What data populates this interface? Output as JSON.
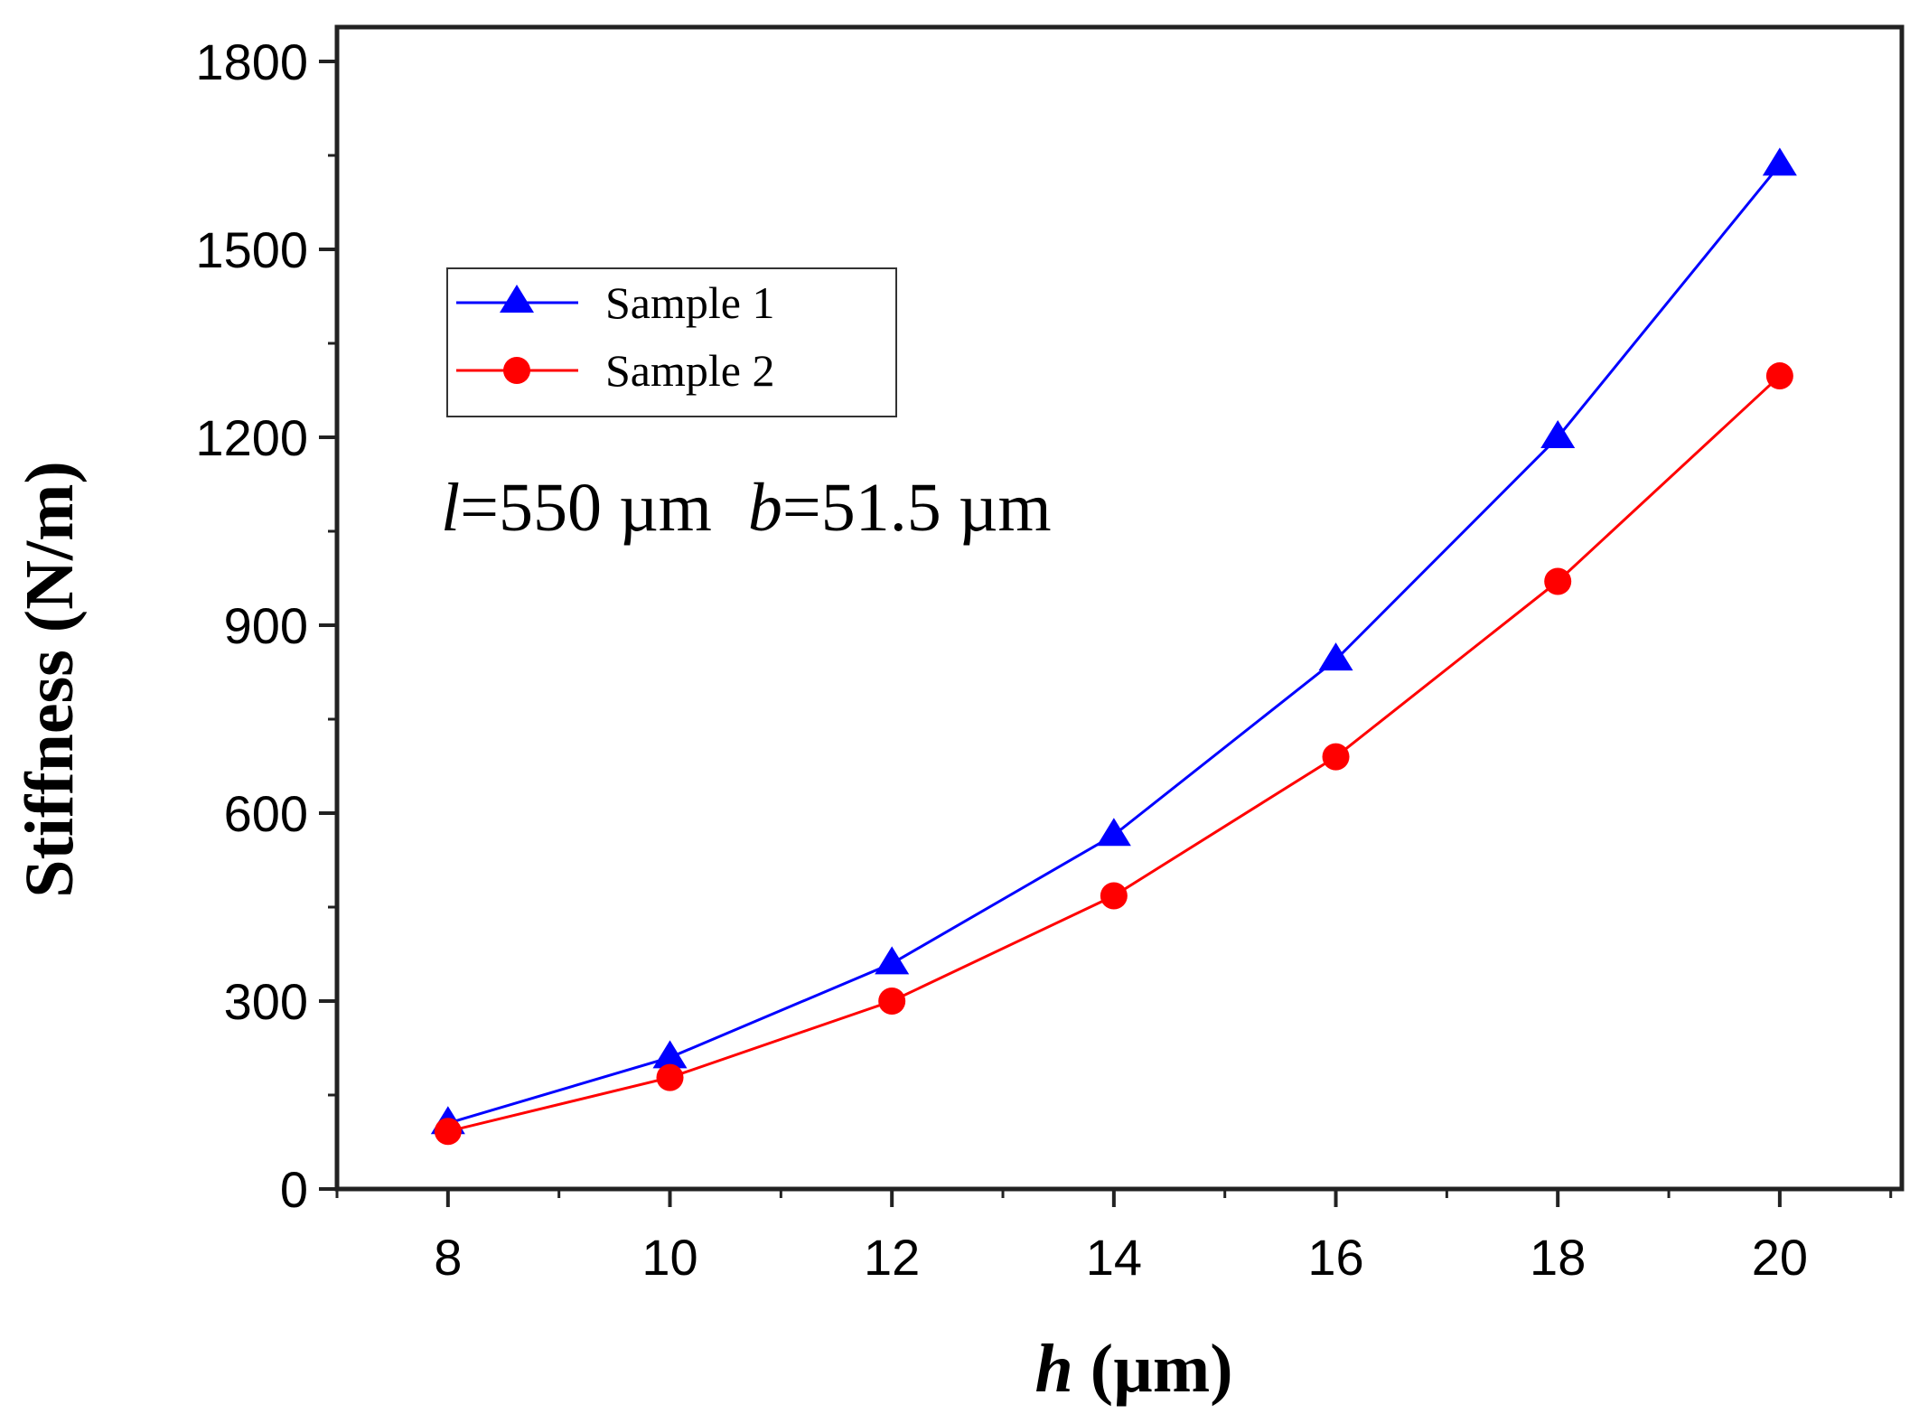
{
  "chart_data": {
    "type": "line",
    "title": "",
    "xlabel_italic": "h",
    "xlabel_rest": " (µm)",
    "ylabel": "Stiffness (N/m)",
    "xlim": [
      7,
      21.1
    ],
    "ylim": [
      0,
      1800
    ],
    "x_ticks": [
      8,
      10,
      12,
      14,
      16,
      18,
      20
    ],
    "y_ticks": [
      0,
      300,
      600,
      900,
      1200,
      1500,
      1800
    ],
    "grid": false,
    "legend_position": "upper-left",
    "x": [
      8,
      10,
      12,
      14,
      16,
      18,
      20
    ],
    "series": [
      {
        "name": "Sample 1",
        "marker": "triangle",
        "color": "#0000ff",
        "values": [
          105,
          210,
          360,
          565,
          845,
          1200,
          1635
        ]
      },
      {
        "name": "Sample 2",
        "marker": "circle",
        "color": "#ff0000",
        "values": [
          92,
          178,
          300,
          468,
          690,
          970,
          1298
        ]
      }
    ],
    "annotation": {
      "l_symbol": "l",
      "l_value": "=550 µm",
      "b_symbol": "b",
      "b_value": "=51.5 µm"
    }
  }
}
